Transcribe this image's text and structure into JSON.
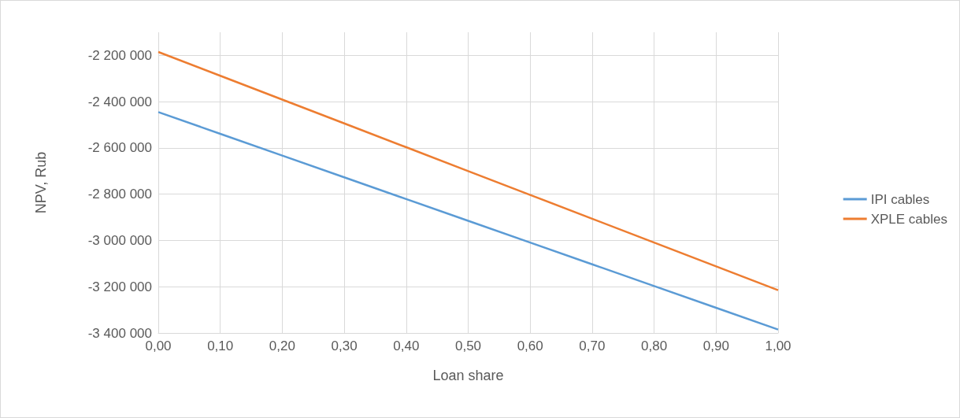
{
  "chart_data": {
    "type": "line",
    "xlabel": "Loan share",
    "ylabel": "NPV, Rub",
    "x": [
      0,
      0.1,
      0.2,
      0.3,
      0.4,
      0.5,
      0.6,
      0.7,
      0.8,
      0.9,
      1
    ],
    "series": [
      {
        "name": "IPI cables",
        "color": "#5b9bd5",
        "values": [
          -2445000,
          -2539000,
          -2633000,
          -2727000,
          -2821000,
          -2915000,
          -3009000,
          -3103000,
          -3197000,
          -3291000,
          -3385000
        ]
      },
      {
        "name": "XPLE cables",
        "color": "#ed7d31",
        "values": [
          -2185000,
          -2288000,
          -2391000,
          -2494000,
          -2597000,
          -2700000,
          -2803000,
          -2906000,
          -3009000,
          -3112000,
          -3215000
        ]
      }
    ],
    "xlim": [
      0,
      1
    ],
    "xticks": [
      {
        "value": 0,
        "label": "0,00"
      },
      {
        "value": 0.1,
        "label": "0,10"
      },
      {
        "value": 0.2,
        "label": "0,20"
      },
      {
        "value": 0.3,
        "label": "0,30"
      },
      {
        "value": 0.4,
        "label": "0,40"
      },
      {
        "value": 0.5,
        "label": "0,50"
      },
      {
        "value": 0.6,
        "label": "0,60"
      },
      {
        "value": 0.7,
        "label": "0,70"
      },
      {
        "value": 0.8,
        "label": "0,80"
      },
      {
        "value": 0.9,
        "label": "0,90"
      },
      {
        "value": 1,
        "label": "1,00"
      }
    ],
    "ylim": [
      -3400000,
      -2100000
    ],
    "yticks": [
      {
        "value": -3400000,
        "label": "-3 400 000"
      },
      {
        "value": -3200000,
        "label": "-3 200 000"
      },
      {
        "value": -3000000,
        "label": "-3 000 000"
      },
      {
        "value": -2800000,
        "label": "-2 800 000"
      },
      {
        "value": -2600000,
        "label": "-2 600 000"
      },
      {
        "value": -2400000,
        "label": "-2 400 000"
      },
      {
        "value": -2200000,
        "label": "-2 200 000"
      }
    ],
    "grid": true,
    "legend": "right",
    "marker": "none",
    "line_style": "solid"
  }
}
